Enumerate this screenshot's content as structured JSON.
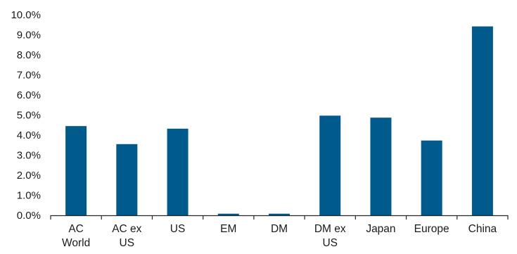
{
  "chart_data": {
    "type": "bar",
    "title": "",
    "xlabel": "",
    "ylabel": "",
    "categories": [
      "AC World",
      "AC ex US",
      "US",
      "EM",
      "DM",
      "DM ex US",
      "Japan",
      "Europe",
      "China"
    ],
    "category_label_lines": [
      [
        "AC",
        "World"
      ],
      [
        "AC ex",
        "US"
      ],
      [
        "US"
      ],
      [
        "EM"
      ],
      [
        "DM"
      ],
      [
        "DM ex",
        "US"
      ],
      [
        "Japan"
      ],
      [
        "Europe"
      ],
      [
        "China"
      ]
    ],
    "values": [
      4.45,
      3.55,
      4.32,
      0.08,
      0.08,
      4.97,
      4.87,
      3.73,
      9.42
    ],
    "ylim": [
      0,
      10
    ],
    "y_ticks": [
      "0.0%",
      "1.0%",
      "2.0%",
      "3.0%",
      "4.0%",
      "5.0%",
      "6.0%",
      "7.0%",
      "8.0%",
      "9.0%",
      "10.0%"
    ],
    "grid": false,
    "legend": "none",
    "bar_color": "#005a8c",
    "axis_color": "#262626"
  }
}
